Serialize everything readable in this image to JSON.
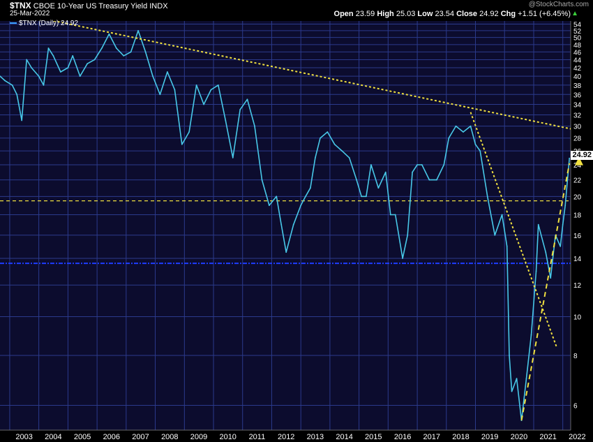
{
  "header": {
    "symbol": "$TNX",
    "name": "CBOE 10-Year US Treasury Yield INDX",
    "date": "25-Mar-2022",
    "open_label": "Open",
    "open": "23.59",
    "high_label": "High",
    "high": "25.03",
    "low_label": "Low",
    "low": "23.54",
    "close_label": "Close",
    "close": "24.92",
    "chg_label": "Chg",
    "chg": "+1.51 (+6.45%)",
    "watermark": "@StockCharts.com"
  },
  "legend": {
    "label": "$TNX (Daily) 24.92"
  },
  "last_value": "24.92",
  "colors": {
    "background": "#000000",
    "plot_background": "#0c0c2e",
    "grid": "#2b3a8c",
    "series": "#48c8e8",
    "trendline": "#f0e040",
    "support_line": "#1e3cff",
    "up_arrow": "#3cd03c"
  },
  "chart_data": {
    "type": "line",
    "title": "CBOE 10-Year US Treasury Yield INDX",
    "y_scale": "log",
    "ylim": [
      5.2,
      55
    ],
    "xlim": [
      "2002-09-01",
      "2022-04-10"
    ],
    "grid": true,
    "x_tick_labels": [
      "2003",
      "2004",
      "2005",
      "2006",
      "2007",
      "2008",
      "2009",
      "2010",
      "2011",
      "2012",
      "2013",
      "2014",
      "2015",
      "2016",
      "2017",
      "2018",
      "2019",
      "2020",
      "2021",
      "2022"
    ],
    "y_tick_labels": [
      6,
      8,
      10,
      12,
      14,
      16,
      18,
      20,
      22,
      24,
      26,
      28,
      30,
      32,
      34,
      36,
      38,
      40,
      42,
      44,
      46,
      48,
      50,
      52,
      54
    ],
    "series": [
      {
        "name": "$TNX (Daily)",
        "x": [
          "2002-09",
          "2002-11",
          "2003-02",
          "2003-04",
          "2003-06",
          "2003-08",
          "2003-10",
          "2004-01",
          "2004-03",
          "2004-05",
          "2004-07",
          "2004-10",
          "2005-01",
          "2005-03",
          "2005-06",
          "2005-09",
          "2005-12",
          "2006-03",
          "2006-06",
          "2006-09",
          "2006-12",
          "2007-03",
          "2007-06",
          "2007-09",
          "2007-12",
          "2008-03",
          "2008-06",
          "2008-09",
          "2008-12",
          "2009-03",
          "2009-06",
          "2009-09",
          "2009-12",
          "2010-03",
          "2010-06",
          "2010-09",
          "2010-12",
          "2011-03",
          "2011-06",
          "2011-09",
          "2011-12",
          "2012-03",
          "2012-05",
          "2012-07",
          "2012-10",
          "2013-01",
          "2013-03",
          "2013-05",
          "2013-07",
          "2013-09",
          "2013-12",
          "2014-03",
          "2014-06",
          "2014-09",
          "2014-12",
          "2015-02",
          "2015-04",
          "2015-06",
          "2015-09",
          "2015-12",
          "2016-02",
          "2016-04",
          "2016-07",
          "2016-09",
          "2016-11",
          "2017-01",
          "2017-03",
          "2017-06",
          "2017-09",
          "2017-12",
          "2018-02",
          "2018-05",
          "2018-08",
          "2018-11",
          "2019-01",
          "2019-03",
          "2019-06",
          "2019-09",
          "2019-12",
          "2020-02",
          "2020-03",
          "2020-04",
          "2020-06",
          "2020-08",
          "2020-10",
          "2020-12",
          "2021-02",
          "2021-03",
          "2021-06",
          "2021-08",
          "2021-10",
          "2021-12",
          "2022-01",
          "2022-02",
          "2022-03",
          "2022-03-25"
        ],
        "y": [
          40,
          39,
          38,
          36,
          31,
          44,
          42,
          40,
          38,
          47,
          45,
          41,
          42,
          45,
          40,
          43,
          44,
          47,
          51,
          47,
          45,
          46,
          52,
          46,
          40,
          36,
          41,
          37,
          27,
          29,
          38,
          34,
          37,
          38,
          31,
          25,
          33,
          35,
          30,
          22,
          19,
          20,
          17,
          14.5,
          17,
          19,
          20,
          21,
          25,
          28,
          29,
          27,
          26,
          25,
          22,
          20,
          20,
          24,
          21,
          23,
          18,
          18,
          14,
          16,
          23,
          24,
          24,
          22,
          22,
          24,
          28,
          30,
          29,
          30,
          27,
          26,
          20,
          16,
          18,
          15,
          8,
          6.5,
          7,
          5.5,
          7,
          9,
          13,
          17,
          14.5,
          12.5,
          16,
          15,
          17,
          19,
          22,
          24.92
        ]
      }
    ],
    "reference_lines": [
      {
        "type": "horizontal",
        "y": 19.5,
        "style": "dashed",
        "color": "#f0e040"
      },
      {
        "type": "horizontal",
        "y": 13.6,
        "style": "dash-dot",
        "color": "#1e3cff"
      }
    ],
    "trendlines": [
      {
        "from": [
          "2002-07-15",
          59
        ],
        "to": [
          "2022-04-20",
          29.5
        ],
        "style": "dotted"
      },
      {
        "from": [
          "2018-11-01",
          32.5
        ],
        "to": [
          "2021-10-15",
          8.4
        ],
        "style": "dotted"
      },
      {
        "from": [
          "2020-08-01",
          5.5
        ],
        "to": [
          "2022-03-25",
          24.2
        ],
        "style": "dashed"
      }
    ]
  }
}
